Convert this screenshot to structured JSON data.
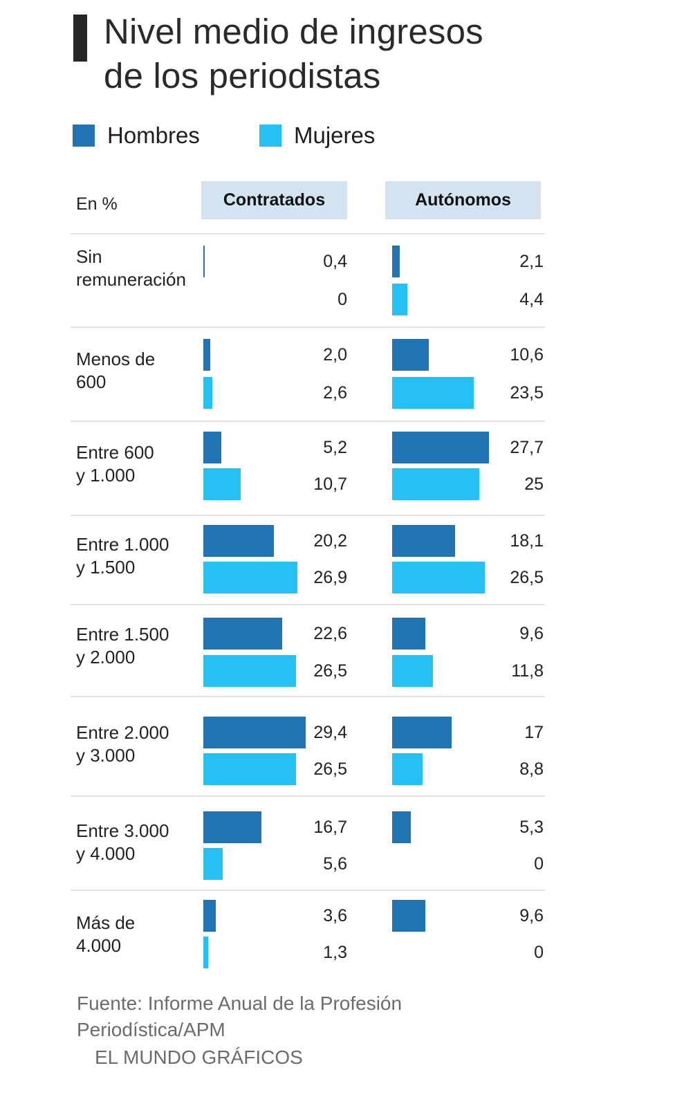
{
  "colors": {
    "hombres": "#2174b4",
    "mujeres": "#27c0f2",
    "header_bg": "#d3e3ef",
    "title_bar": "#262626"
  },
  "title_lines": [
    "Nivel medio de ingresos",
    "de los periodistas"
  ],
  "legend": [
    {
      "label": "Hombres",
      "key": "hombres"
    },
    {
      "label": "Mujeres",
      "key": "mujeres"
    }
  ],
  "unit_label": "En %",
  "columns": [
    "Contratados",
    "Autónomos"
  ],
  "source_lines": [
    "Fuente: Informe Anual de la Profesión",
    "Periodística/APM"
  ],
  "credit": "EL MUNDO GRÁFICOS",
  "chart_data": {
    "type": "bar",
    "orientation": "horizontal",
    "title": "Nivel medio de ingresos de los periodistas",
    "unit": "%",
    "categories": [
      "Sin remuneración",
      "Menos de 600",
      "Entre 600 y 1.000",
      "Entre 1.000 y 1.500",
      "Entre 1.500 y 2.000",
      "Entre 2.000 y 3.000",
      "Entre 3.000 y 4.000",
      "Más de 4.000"
    ],
    "category_lines": [
      [
        "Sin",
        "remuneración"
      ],
      [
        "Menos de",
        "600"
      ],
      [
        "Entre 600",
        "y 1.000"
      ],
      [
        "Entre 1.000",
        "y 1.500"
      ],
      [
        "Entre 1.500",
        "y 2.000"
      ],
      [
        "Entre 2.000",
        "y 3.000"
      ],
      [
        "Entre 3.000",
        "y 4.000"
      ],
      [
        "Más de",
        "4.000"
      ]
    ],
    "panels": [
      {
        "name": "Contratados",
        "series": [
          {
            "name": "Hombres",
            "values": [
              0.4,
              2.0,
              5.2,
              20.2,
              22.6,
              29.4,
              16.7,
              3.6
            ],
            "labels": [
              "0,4",
              "2,0",
              "5,2",
              "20,2",
              "22,6",
              "29,4",
              "16,7",
              "3,6"
            ]
          },
          {
            "name": "Mujeres",
            "values": [
              0,
              2.6,
              10.7,
              26.9,
              26.5,
              26.5,
              5.6,
              1.3
            ],
            "labels": [
              "0",
              "2,6",
              "10,7",
              "26,9",
              "26,5",
              "26,5",
              "5,6",
              "1,3"
            ]
          }
        ]
      },
      {
        "name": "Autónomos",
        "series": [
          {
            "name": "Hombres",
            "values": [
              2.1,
              10.6,
              27.7,
              18.1,
              9.6,
              17,
              5.3,
              9.6
            ],
            "labels": [
              "2,1",
              "10,6",
              "27,7",
              "18,1",
              "9,6",
              "17",
              "5,3",
              "9,6"
            ]
          },
          {
            "name": "Mujeres",
            "values": [
              4.4,
              23.5,
              25,
              26.5,
              11.8,
              8.8,
              0,
              0
            ],
            "labels": [
              "4,4",
              "23,5",
              "25",
              "26,5",
              "11,8",
              "8,8",
              "0",
              "0"
            ]
          }
        ]
      }
    ],
    "legend": [
      "Hombres",
      "Mujeres"
    ],
    "legend_position": "top-left",
    "xlim": [
      0,
      30
    ],
    "grid": false
  }
}
